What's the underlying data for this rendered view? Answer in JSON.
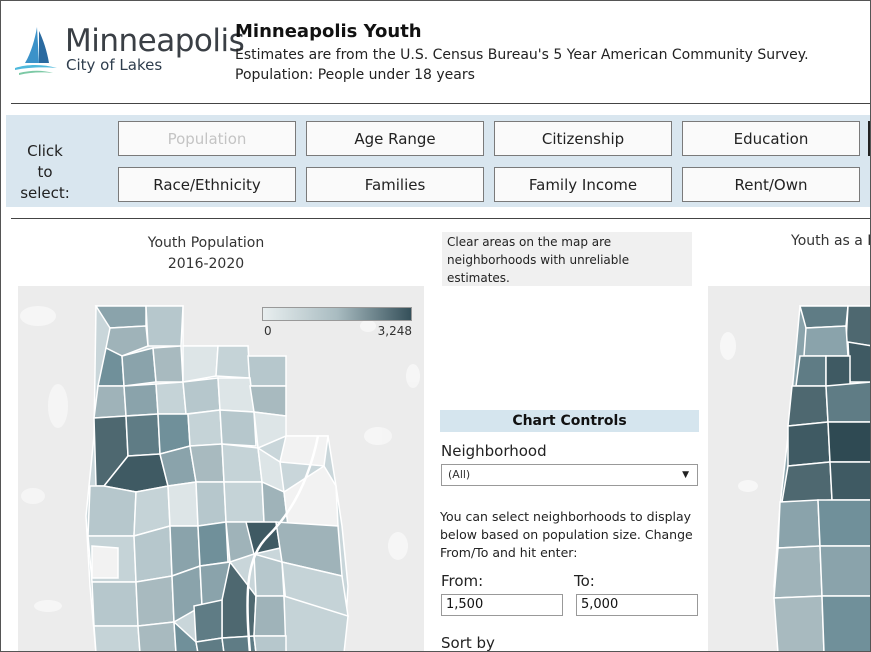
{
  "header": {
    "logo_name": "Minneapolis",
    "logo_tagline": "City of Lakes",
    "title": "Minneapolis Youth",
    "subtitle_line1": "Estimates are from the U.S. Census Bureau's 5 Year American Community Survey.",
    "subtitle_line2": "Population: People under 18 years"
  },
  "selector": {
    "label": "Click to select:",
    "buttons": [
      {
        "label": "Population",
        "state": "selected"
      },
      {
        "label": "Age Range"
      },
      {
        "label": "Citizenship"
      },
      {
        "label": "Education"
      },
      {
        "label": "Race/Ethnicity"
      },
      {
        "label": "Families"
      },
      {
        "label": "Family Income"
      },
      {
        "label": "Rent/Own"
      }
    ]
  },
  "map_left": {
    "title_line1": "Youth Population",
    "title_line2": "2016-2020",
    "legend_min": "0",
    "legend_max": "3,248",
    "colors": {
      "low": "#e8eeef",
      "high": "#35505a"
    }
  },
  "map_right": {
    "title_partial": "Youth as a P"
  },
  "note": {
    "text_line1": "Clear areas on the map are",
    "text_line2": "neighborhoods with unreliable",
    "text_line3": "estimates."
  },
  "controls": {
    "header": "Chart Controls",
    "neighborhood_label": "Neighborhood",
    "neighborhood_value": "(All)",
    "help_line1": "You can select neighborhoods to display",
    "help_line2": "below based on population size. Change",
    "help_line3": "From/To and hit enter:",
    "from_label": "From:",
    "from_value": "1,500",
    "to_label": "To:",
    "to_value": "5,000",
    "sort_label": "Sort by"
  }
}
